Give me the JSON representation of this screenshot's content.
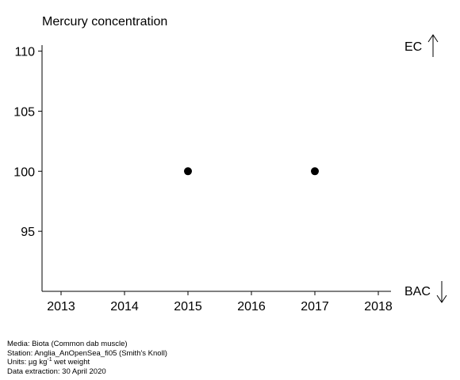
{
  "chart_data": {
    "type": "scatter",
    "title": "Mercury concentration",
    "xlabel": "",
    "ylabel": "",
    "xlim": [
      2012.7,
      2018.2
    ],
    "ylim": [
      90,
      110.5
    ],
    "xticks": [
      2013,
      2014,
      2015,
      2016,
      2017,
      2018
    ],
    "yticks": [
      95,
      100,
      105,
      110
    ],
    "points": [
      {
        "x": 2015,
        "y": 100
      },
      {
        "x": 2017,
        "y": 100
      }
    ],
    "reference_labels": {
      "top": "EC",
      "bottom": "BAC"
    },
    "grid": false
  },
  "footer": {
    "media": "Media: Biota (Common dab muscle)",
    "station": "Station: Anglia_AnOpenSea_fi05 (Smith's Knoll)",
    "units_prefix": "Units:  µg kg",
    "units_exp": "-1",
    "units_suffix": " wet weight",
    "extraction": "Data extraction: 30 April 2020"
  }
}
